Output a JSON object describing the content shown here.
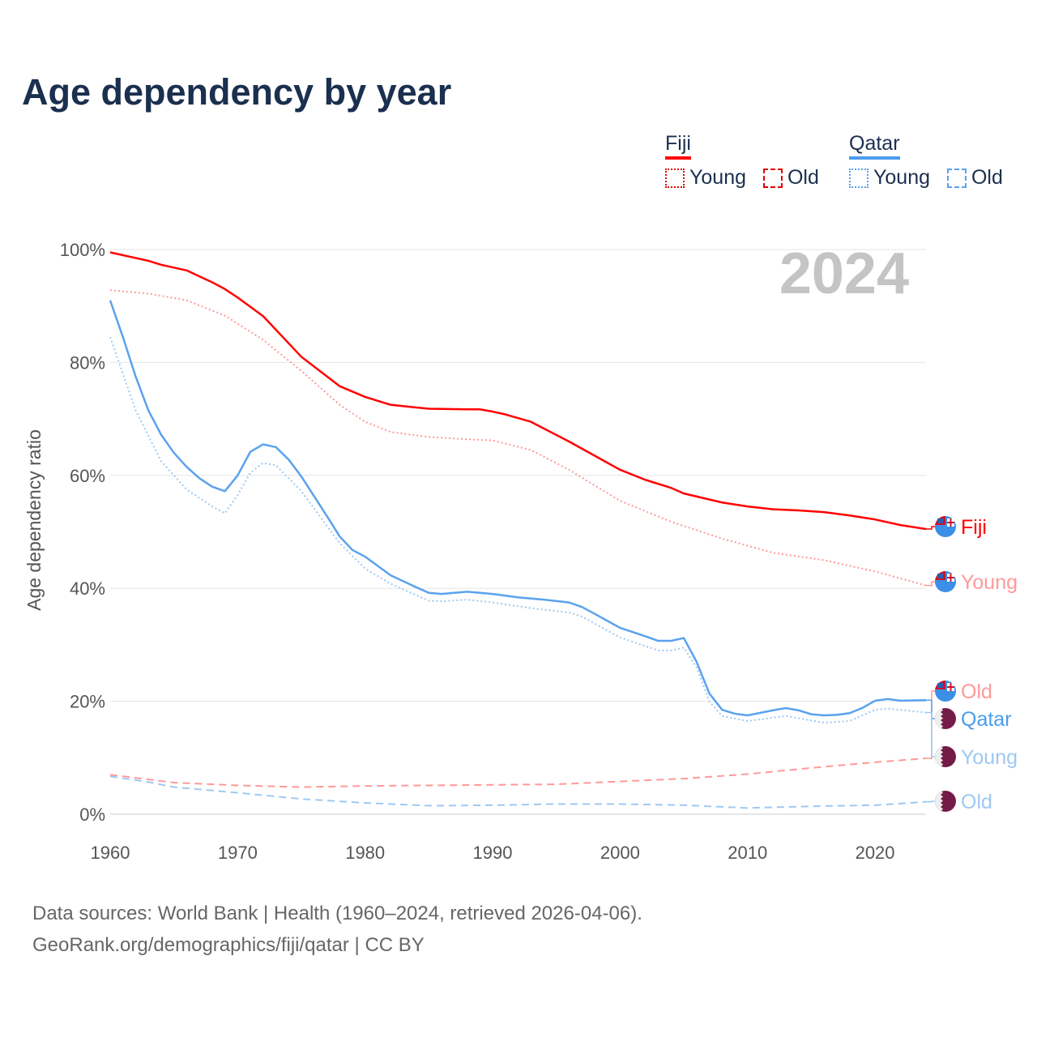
{
  "title": "Age dependency by year",
  "legend": {
    "groups": [
      {
        "name": "Fiji",
        "color": "#ff0000",
        "items": [
          "Young",
          "Old"
        ]
      },
      {
        "name": "Qatar",
        "color": "#4a9cf0",
        "items": [
          "Young",
          "Old"
        ]
      }
    ]
  },
  "year_watermark": "2024",
  "sources": {
    "line1": "Data sources: World Bank | Health (1960–2024, retrieved 2026-04-06).",
    "line2": "GeoRank.org/demographics/fiji/qatar | CC BY"
  },
  "chart_data": {
    "type": "line",
    "title": "Age dependency by year",
    "xlabel": "",
    "ylabel": "Age dependency ratio",
    "xlim": [
      1960,
      2024
    ],
    "ylim": [
      0,
      100
    ],
    "xticks": [
      1960,
      1970,
      1980,
      1990,
      2000,
      2010,
      2020
    ],
    "yticks": [
      0,
      20,
      40,
      60,
      80,
      100
    ],
    "ytick_labels": [
      "0%",
      "20%",
      "40%",
      "60%",
      "80%",
      "100%"
    ],
    "grid": true,
    "series": [
      {
        "name": "Fiji",
        "label": "Fiji",
        "country": "Fiji",
        "kind": "total",
        "color": "#ff0000",
        "style": "solid",
        "x": [
          1960,
          1963,
          1964,
          1966,
          1968,
          1969,
          1970,
          1972,
          1975,
          1978,
          1980,
          1982,
          1985,
          1988,
          1989,
          1990,
          1991,
          1993,
          1996,
          2000,
          2002,
          2004,
          2005,
          2008,
          2010,
          2012,
          2014,
          2016,
          2018,
          2020,
          2022,
          2024
        ],
        "y": [
          99.5,
          98,
          97.3,
          96.3,
          94.2,
          93,
          91.5,
          88.2,
          81,
          75.8,
          73.9,
          72.5,
          71.8,
          71.7,
          71.7,
          71.3,
          70.8,
          69.5,
          66,
          61,
          59.2,
          57.8,
          56.8,
          55.2,
          54.5,
          54,
          53.8,
          53.5,
          52.9,
          52.2,
          51.2,
          50.5
        ]
      },
      {
        "name": "Fiji Young",
        "label": "Young",
        "country": "Fiji",
        "kind": "young",
        "color": "#ff9999",
        "style": "dotted",
        "x": [
          1960,
          1963,
          1966,
          1969,
          1972,
          1975,
          1978,
          1980,
          1982,
          1985,
          1988,
          1990,
          1993,
          1996,
          2000,
          2004,
          2008,
          2012,
          2016,
          2020,
          2024
        ],
        "y": [
          92.8,
          92.2,
          91,
          88.3,
          84,
          78.5,
          72.5,
          69.5,
          67.7,
          66.8,
          66.4,
          66.2,
          64.5,
          61,
          55.5,
          51.8,
          48.8,
          46.3,
          45,
          43,
          40.5
        ]
      },
      {
        "name": "Fiji Old",
        "label": "Old",
        "country": "Fiji",
        "kind": "old",
        "color": "#ff9999",
        "style": "dashed",
        "x": [
          1960,
          1965,
          1970,
          1975,
          1980,
          1985,
          1990,
          1995,
          2000,
          2005,
          2010,
          2015,
          2020,
          2024
        ],
        "y": [
          7,
          5.6,
          5.1,
          4.8,
          5,
          5.1,
          5.2,
          5.3,
          5.8,
          6.3,
          7.1,
          8.2,
          9.2,
          9.9
        ]
      },
      {
        "name": "Qatar",
        "label": "Qatar",
        "country": "Qatar",
        "kind": "total",
        "color": "#5aa2ee",
        "style": "solid",
        "x": [
          1960,
          1961,
          1962,
          1963,
          1964,
          1965,
          1966,
          1967,
          1968,
          1969,
          1970,
          1971,
          1972,
          1973,
          1974,
          1975,
          1976,
          1977,
          1978,
          1979,
          1980,
          1982,
          1984,
          1985,
          1986,
          1988,
          1990,
          1992,
          1994,
          1996,
          1997,
          1998,
          2000,
          2002,
          2003,
          2004,
          2005,
          2006,
          2007,
          2008,
          2009,
          2010,
          2012,
          2013,
          2014,
          2015,
          2016,
          2017,
          2018,
          2019,
          2020,
          2021,
          2022,
          2024
        ],
        "y": [
          91,
          84.5,
          77.5,
          71.5,
          67.2,
          64,
          61.5,
          59.5,
          58,
          57.2,
          60,
          64.2,
          65.5,
          65,
          62.8,
          59.8,
          56.3,
          52.8,
          49.2,
          46.8,
          45.6,
          42.3,
          40.2,
          39.2,
          39,
          39.4,
          39,
          38.4,
          38,
          37.5,
          36.7,
          35.5,
          33,
          31.5,
          30.7,
          30.7,
          31.2,
          27,
          21.4,
          18.5,
          17.8,
          17.5,
          18.4,
          18.8,
          18.4,
          17.7,
          17.5,
          17.6,
          17.9,
          18.8,
          20.1,
          20.4,
          20.1,
          20.2
        ]
      },
      {
        "name": "Qatar Young",
        "label": "Young",
        "country": "Qatar",
        "kind": "young",
        "color": "#9ec8f2",
        "style": "dotted",
        "x": [
          1960,
          1962,
          1964,
          1966,
          1968,
          1969,
          1970,
          1971,
          1972,
          1973,
          1975,
          1978,
          1980,
          1982,
          1985,
          1986,
          1988,
          1990,
          1993,
          1996,
          1997,
          2000,
          2003,
          2004,
          2005,
          2006,
          2007,
          2008,
          2010,
          2013,
          2016,
          2018,
          2020,
          2021,
          2024
        ],
        "y": [
          84.5,
          71.5,
          62.5,
          57.5,
          54.5,
          53.3,
          56.5,
          60.5,
          62.2,
          61.8,
          57.2,
          48,
          43.5,
          40.8,
          37.8,
          37.7,
          38,
          37.5,
          36.5,
          35.7,
          35,
          31.3,
          29,
          29,
          29.5,
          26,
          20,
          17.4,
          16.5,
          17.4,
          16.2,
          16.5,
          18.5,
          18.7,
          18
        ]
      },
      {
        "name": "Qatar Old",
        "label": "Old",
        "country": "Qatar",
        "kind": "old",
        "color": "#9ec8f2",
        "style": "dashed",
        "x": [
          1960,
          1963,
          1965,
          1970,
          1975,
          1980,
          1985,
          1990,
          1995,
          2000,
          2005,
          2010,
          2015,
          2020,
          2024
        ],
        "y": [
          6.7,
          5.7,
          4.8,
          3.8,
          2.7,
          2,
          1.5,
          1.6,
          1.8,
          1.8,
          1.6,
          1.1,
          1.4,
          1.6,
          2.2
        ]
      }
    ]
  }
}
